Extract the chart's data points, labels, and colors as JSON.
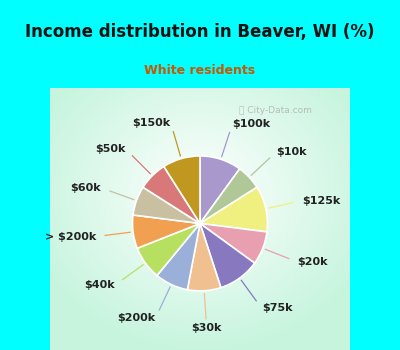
{
  "title": "Income distribution in Beaver, WI (%)",
  "subtitle": "White residents",
  "title_color": "#111111",
  "subtitle_color": "#cc5500",
  "bg_cyan": "#00ffff",
  "chart_bg": "#d8f0e0",
  "labels": [
    "$100k",
    "$10k",
    "$125k",
    "$20k",
    "$75k",
    "$30k",
    "$200k",
    "$40k",
    "> $200k",
    "$60k",
    "$50k",
    "$150k"
  ],
  "sizes": [
    10,
    6,
    11,
    8,
    10,
    8,
    8,
    8,
    8,
    7,
    7,
    9
  ],
  "colors": [
    "#a898cc",
    "#b0c898",
    "#f0f080",
    "#e8a0b0",
    "#8878c0",
    "#f0c090",
    "#9ab0d8",
    "#b8e060",
    "#f0a050",
    "#c8c0a0",
    "#d87878",
    "#c09820"
  ],
  "wedge_linewidth": 1.2,
  "wedge_edgecolor": "#ffffff",
  "label_fontsize": 8,
  "title_fontsize": 12,
  "subtitle_fontsize": 9
}
